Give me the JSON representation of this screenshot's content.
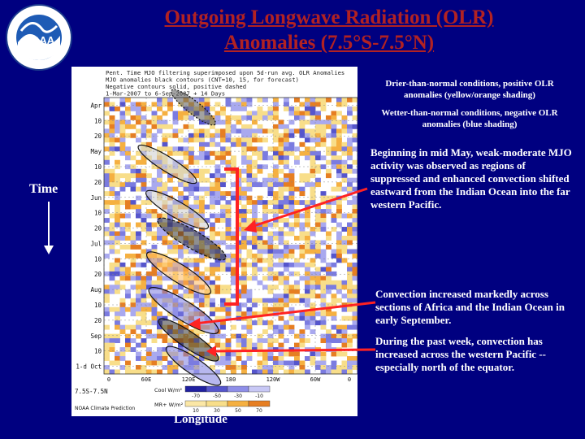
{
  "title_line1": "Outgoing Longwave Radiation (OLR)",
  "title_line2": "Anomalies (7.5°S-7.5°N)",
  "logo_text": "NOAA",
  "logo_ring_text": "NATIONAL OCEANIC AND ATMOSPHERIC ADMINISTRATION · U.S. DEPARTMENT OF COMMERCE",
  "axis_time": "Time",
  "axis_longitude": "Longitude",
  "notes": {
    "drier": "Drier-than-normal conditions, positive OLR anomalies (yellow/orange shading)",
    "wetter": "Wetter-than-normal conditions, negative OLR anomalies (blue shading)",
    "mjo": "Beginning in mid May, weak-moderate MJO activity was observed as regions of suppressed and enhanced convection shifted eastward from the Indian Ocean into the far western Pacific.",
    "africa": "Convection increased markedly across sections of Africa and the Indian Ocean in early September.",
    "pacific": "During the past week, convection has increased across the western Pacific -- especially north of the equator."
  },
  "colors": {
    "background": "#000080",
    "title": "#b22222",
    "note_text": "#ffffff",
    "arrow": "#ff2222",
    "bracket": "#ff2222",
    "positive_anomaly": "#f5b041",
    "negative_anomaly": "#8e8ee8"
  },
  "chart_data": {
    "type": "heatmap",
    "header_lines": [
      "Pent. Time MJO filtering superimposed upon 5d-run avg. OLR Anomalies",
      "MJO anomalies black contours (CNT=10, 15, for forecast)",
      "Negative contours solid, positive dashed",
      "1-Mar-2007 to 6-Sep-2007 + 14 Days"
    ],
    "y_ticks": [
      "Apr",
      "10",
      "20",
      "May",
      "10",
      "20",
      "Jun",
      "10",
      "20",
      "Jul",
      "10",
      "20",
      "Aug",
      "10",
      "20",
      "Sep",
      "10",
      "1-d Oct"
    ],
    "x_ticks": [
      "0",
      "60E",
      "120E",
      "180",
      "120W",
      "60W",
      "0"
    ],
    "footer_left": "7.5S-7.5N",
    "footer_org": "NOAA Climate Prediction",
    "colorbar_neg_label": "Cool W/m²",
    "colorbar_pos_label": "MR+ W/m²",
    "colorbar_neg": [
      "-70",
      "-50",
      "-30",
      "-10"
    ],
    "colorbar_pos": [
      "10",
      "30",
      "50",
      "70"
    ],
    "grid": true
  }
}
